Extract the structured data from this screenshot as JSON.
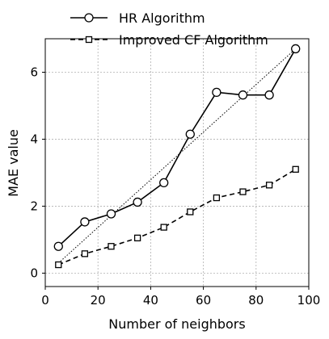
{
  "chart_data": {
    "type": "line",
    "title": "",
    "xlabel": "Number of neighbors",
    "ylabel": "MAE value",
    "xlim": [
      0,
      100
    ],
    "ylim": [
      -0.4,
      7.0
    ],
    "xticks": [
      0,
      20,
      40,
      60,
      80,
      100
    ],
    "yticks": [
      0,
      2,
      4,
      6
    ],
    "grid": true,
    "legend_position": "top",
    "x": [
      5,
      15,
      25,
      35,
      45,
      55,
      65,
      75,
      85,
      95
    ],
    "series": [
      {
        "name": "HR Algorithm",
        "values": [
          0.8,
          1.53,
          1.77,
          2.12,
          2.7,
          4.15,
          5.4,
          5.32,
          5.32,
          6.7
        ],
        "line_style": "solid",
        "marker": "circle",
        "color": "#000000"
      },
      {
        "name": "Improved CF Algorithm",
        "values": [
          0.25,
          0.58,
          0.8,
          1.05,
          1.37,
          1.83,
          2.25,
          2.43,
          2.63,
          3.1
        ],
        "line_style": "dashed",
        "marker": "square",
        "color": "#000000"
      }
    ],
    "trendline": {
      "style": "dotted",
      "from": [
        5,
        0.3
      ],
      "to": [
        95,
        6.7
      ]
    }
  }
}
